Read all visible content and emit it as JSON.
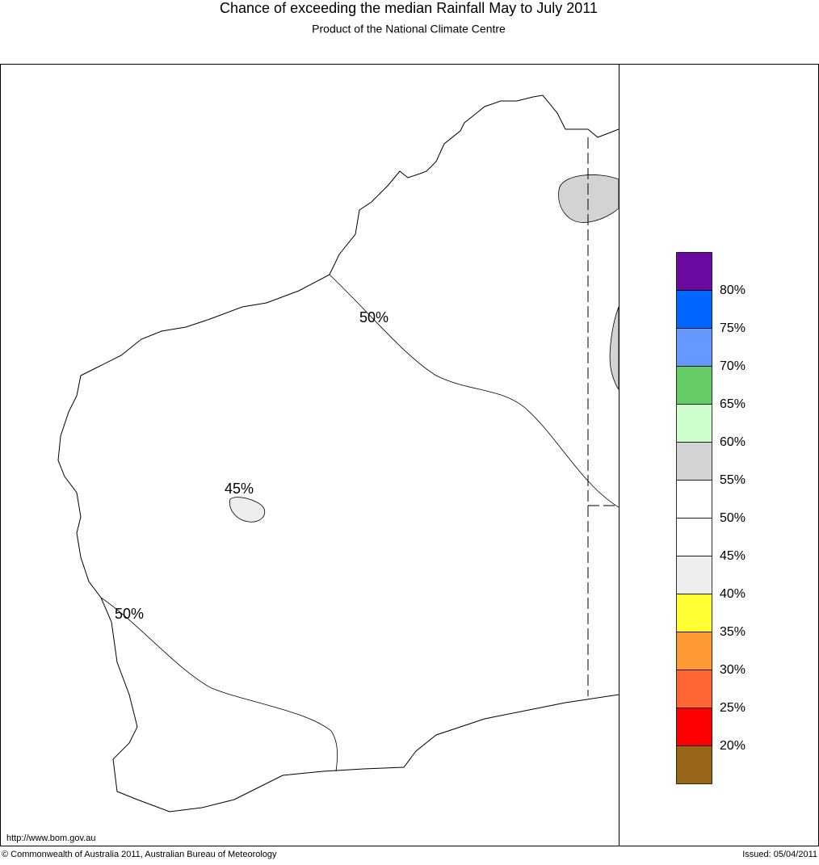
{
  "header": {
    "title": "Chance of exceeding the median Rainfall May to July 2011",
    "subtitle": "Product of the National Climate Centre"
  },
  "map": {
    "contour_labels": [
      "50%",
      "45%",
      "50%"
    ]
  },
  "legend": {
    "colors": [
      "#6a0aa0",
      "#0066ff",
      "#6699ff",
      "#66cc66",
      "#ccffcc",
      "#d3d3d3",
      "#ffffff",
      "#ffffff",
      "#eeeeee",
      "#ffff33",
      "#ff9933",
      "#ff6633",
      "#ff0000",
      "#996619"
    ],
    "labels": [
      "80%",
      "75%",
      "70%",
      "65%",
      "60%",
      "55%",
      "50%",
      "45%",
      "40%",
      "35%",
      "30%",
      "25%",
      "20%"
    ]
  },
  "footer": {
    "url": "http://www.bom.gov.au",
    "copyright": "© Commonwealth of Australia 2011, Australian Bureau of Meteorology",
    "issued": "Issued: 05/04/2011"
  }
}
